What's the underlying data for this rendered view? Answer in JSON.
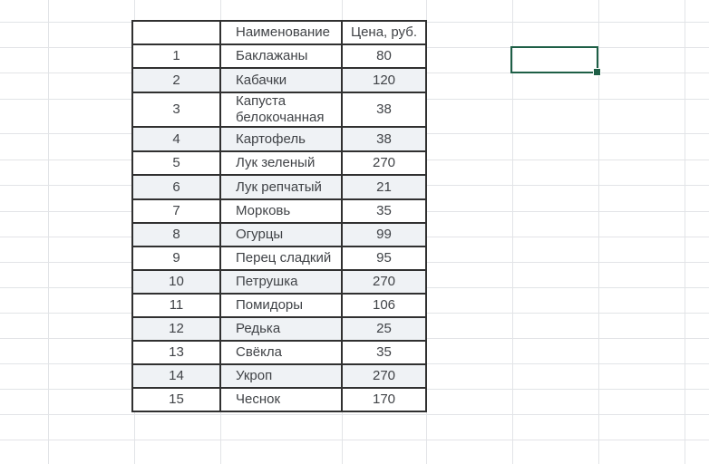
{
  "table": {
    "headers": [
      "",
      "Наименование",
      "Цена, руб."
    ],
    "rows": [
      {
        "num": "1",
        "name": "Баклажаны",
        "price": "80"
      },
      {
        "num": "2",
        "name": "Кабачки",
        "price": "120"
      },
      {
        "num": "3",
        "name": "Капуста белокочанная",
        "price": "38"
      },
      {
        "num": "4",
        "name": "Картофель",
        "price": "38"
      },
      {
        "num": "5",
        "name": "Лук зеленый",
        "price": "270"
      },
      {
        "num": "6",
        "name": "Лук репчатый",
        "price": "21"
      },
      {
        "num": "7",
        "name": "Морковь",
        "price": "35"
      },
      {
        "num": "8",
        "name": "Огурцы",
        "price": "99"
      },
      {
        "num": "9",
        "name": "Перец сладкий",
        "price": "95"
      },
      {
        "num": "10",
        "name": "Петрушка",
        "price": "270"
      },
      {
        "num": "11",
        "name": "Помидоры",
        "price": "106"
      },
      {
        "num": "12",
        "name": "Редька",
        "price": "25"
      },
      {
        "num": "13",
        "name": "Свёкла",
        "price": "35"
      },
      {
        "num": "14",
        "name": "Укроп",
        "price": "270"
      },
      {
        "num": "15",
        "name": "Чеснок",
        "price": "170"
      }
    ]
  },
  "colors": {
    "selection_border": "#1e5f46",
    "grid_line": "#e2e4e7",
    "table_border": "#303030",
    "row_alt_background": "#eff2f5",
    "text": "#404347"
  }
}
